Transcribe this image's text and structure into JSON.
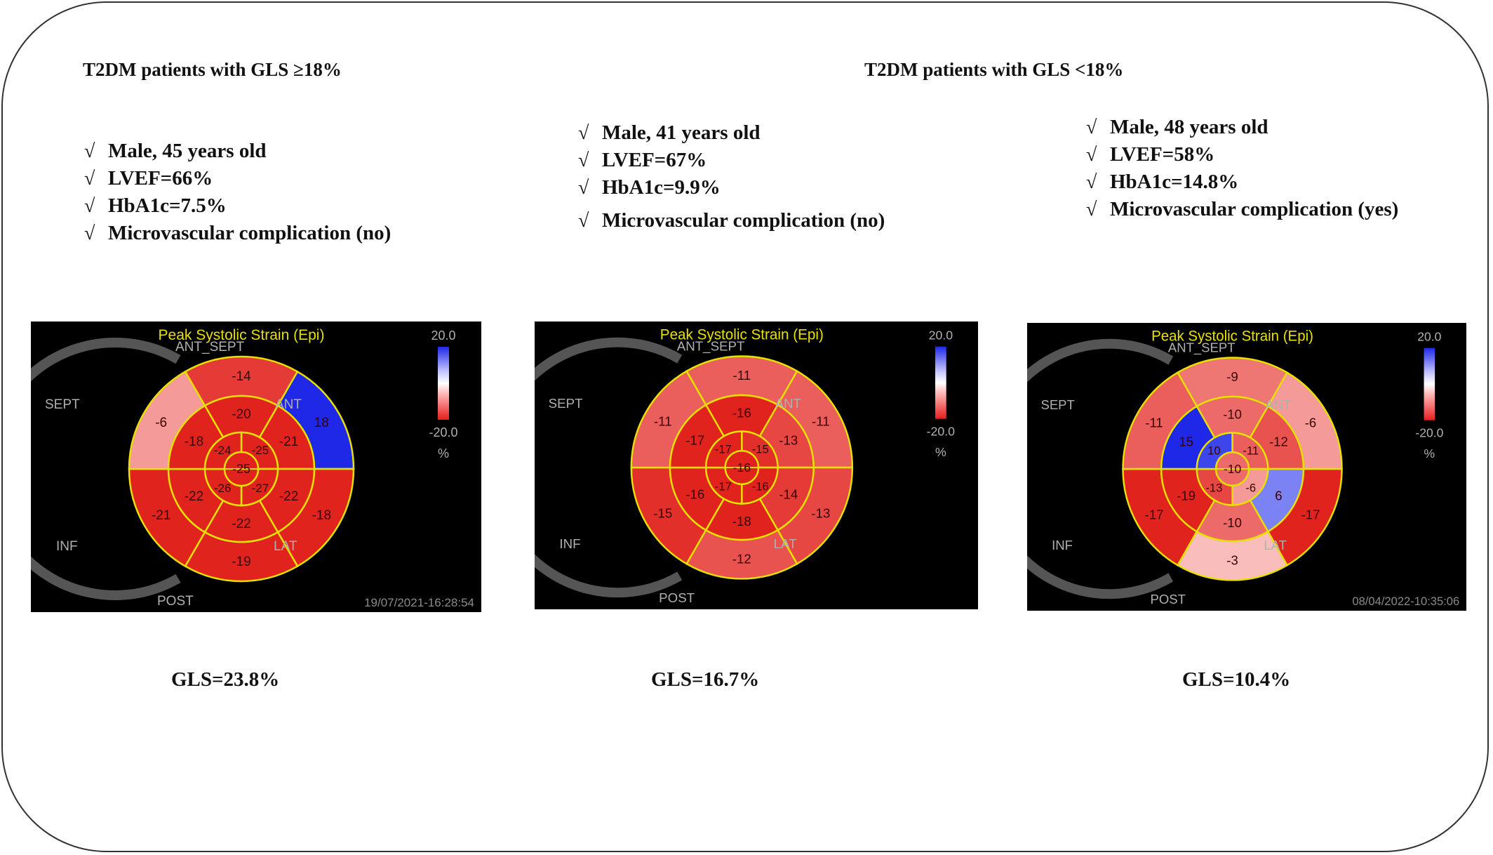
{
  "titles": {
    "left": "T2DM patients with GLS ≥18%",
    "right": "T2DM patients with GLS <18%"
  },
  "check_symbol": "√",
  "colors": {
    "frame": "#333333",
    "ring": "#e8e000",
    "panel_bg": "#000000",
    "title_yellow": "#e8e000",
    "label_gray": "#b0b0b0"
  },
  "patients": [
    {
      "bullets": [
        "Male, 45 years old",
        "LVEF=66%",
        "HbA1c=7.5%",
        "Microvascular complication (no)"
      ],
      "panel": {
        "title": "Peak Systolic Strain (Epi)",
        "scale_max": "20.0",
        "scale_min": "-20.0",
        "scale_unit": "%",
        "labels": {
          "ant_sept": "ANT_SEPT",
          "sept": "SEPT",
          "ant": "ANT",
          "inf": "INF",
          "lat": "LAT",
          "post": "POST"
        },
        "timestamp": "19/07/2021-16:28:54",
        "segments": {
          "basal": [
            "-14",
            "18",
            "-18",
            "-19",
            "-21",
            "-6"
          ],
          "mid": [
            "-20",
            "-21",
            "-22",
            "-22",
            "-22",
            "-18"
          ],
          "apical": [
            "-25",
            "-27",
            "-26",
            "-24"
          ],
          "apex": "-25"
        }
      },
      "gls": "GLS=23.8%"
    },
    {
      "bullets": [
        "Male, 41 years old",
        "LVEF=67%",
        "HbA1c=9.9%",
        "Microvascular complication (no)"
      ],
      "panel": {
        "title": "Peak Systolic Strain (Epi)",
        "scale_max": "20.0",
        "scale_min": "-20.0",
        "scale_unit": "%",
        "labels": {
          "ant_sept": "ANT_SEPT",
          "sept": "SEPT",
          "ant": "ANT",
          "inf": "INF",
          "lat": "LAT",
          "post": "POST"
        },
        "timestamp": "",
        "segments": {
          "basal": [
            "-11",
            "-11",
            "-13",
            "-12",
            "-15",
            "-11"
          ],
          "mid": [
            "-16",
            "-13",
            "-14",
            "-18",
            "-16",
            "-17"
          ],
          "apical": [
            "-15",
            "-16",
            "-17",
            "-17"
          ],
          "apex": "-16"
        }
      },
      "gls": "GLS=16.7%"
    },
    {
      "bullets": [
        "Male, 48 years old",
        "LVEF=58%",
        "HbA1c=14.8%",
        "Microvascular complication (yes)"
      ],
      "panel": {
        "title": "Peak Systolic Strain (Epi)",
        "scale_max": "20.0",
        "scale_min": "-20.0",
        "scale_unit": "%",
        "labels": {
          "ant_sept": "ANT_SEPT",
          "sept": "SEPT",
          "ant": "ANT",
          "inf": "INF",
          "lat": "LAT",
          "post": "POST"
        },
        "timestamp": "08/04/2022-10:35:06",
        "segments": {
          "basal": [
            "-9",
            "-6",
            "-17",
            "-3",
            "-17",
            "-11"
          ],
          "mid": [
            "-10",
            "-12",
            "6",
            "-10",
            "-19",
            "15"
          ],
          "apical": [
            "-11",
            "-6",
            "-13",
            "10"
          ],
          "apex": "-10"
        }
      },
      "gls": "GLS=10.4%"
    }
  ]
}
